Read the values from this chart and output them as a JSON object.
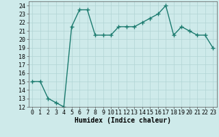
{
  "x": [
    0,
    1,
    2,
    3,
    4,
    5,
    6,
    7,
    8,
    9,
    10,
    11,
    12,
    13,
    14,
    15,
    16,
    17,
    18,
    19,
    20,
    21,
    22,
    23
  ],
  "y": [
    15,
    15,
    13,
    12.5,
    12,
    21.5,
    23.5,
    23.5,
    20.5,
    20.5,
    20.5,
    21.5,
    21.5,
    21.5,
    22,
    22.5,
    23,
    24,
    20.5,
    21.5,
    21,
    20.5,
    20.5,
    19
  ],
  "line_color": "#1a7a6e",
  "marker": "+",
  "marker_size": 4,
  "bg_color": "#ceeaea",
  "grid_color": "#b0d4d4",
  "xlabel": "Humidex (Indice chaleur)",
  "ylim": [
    12,
    24.5
  ],
  "xlim": [
    -0.5,
    23.5
  ],
  "yticks": [
    12,
    13,
    14,
    15,
    16,
    17,
    18,
    19,
    20,
    21,
    22,
    23,
    24
  ],
  "xticks": [
    0,
    1,
    2,
    3,
    4,
    5,
    6,
    7,
    8,
    9,
    10,
    11,
    12,
    13,
    14,
    15,
    16,
    17,
    18,
    19,
    20,
    21,
    22,
    23
  ],
  "tick_fontsize": 6,
  "xlabel_fontsize": 7,
  "linewidth": 1.0
}
